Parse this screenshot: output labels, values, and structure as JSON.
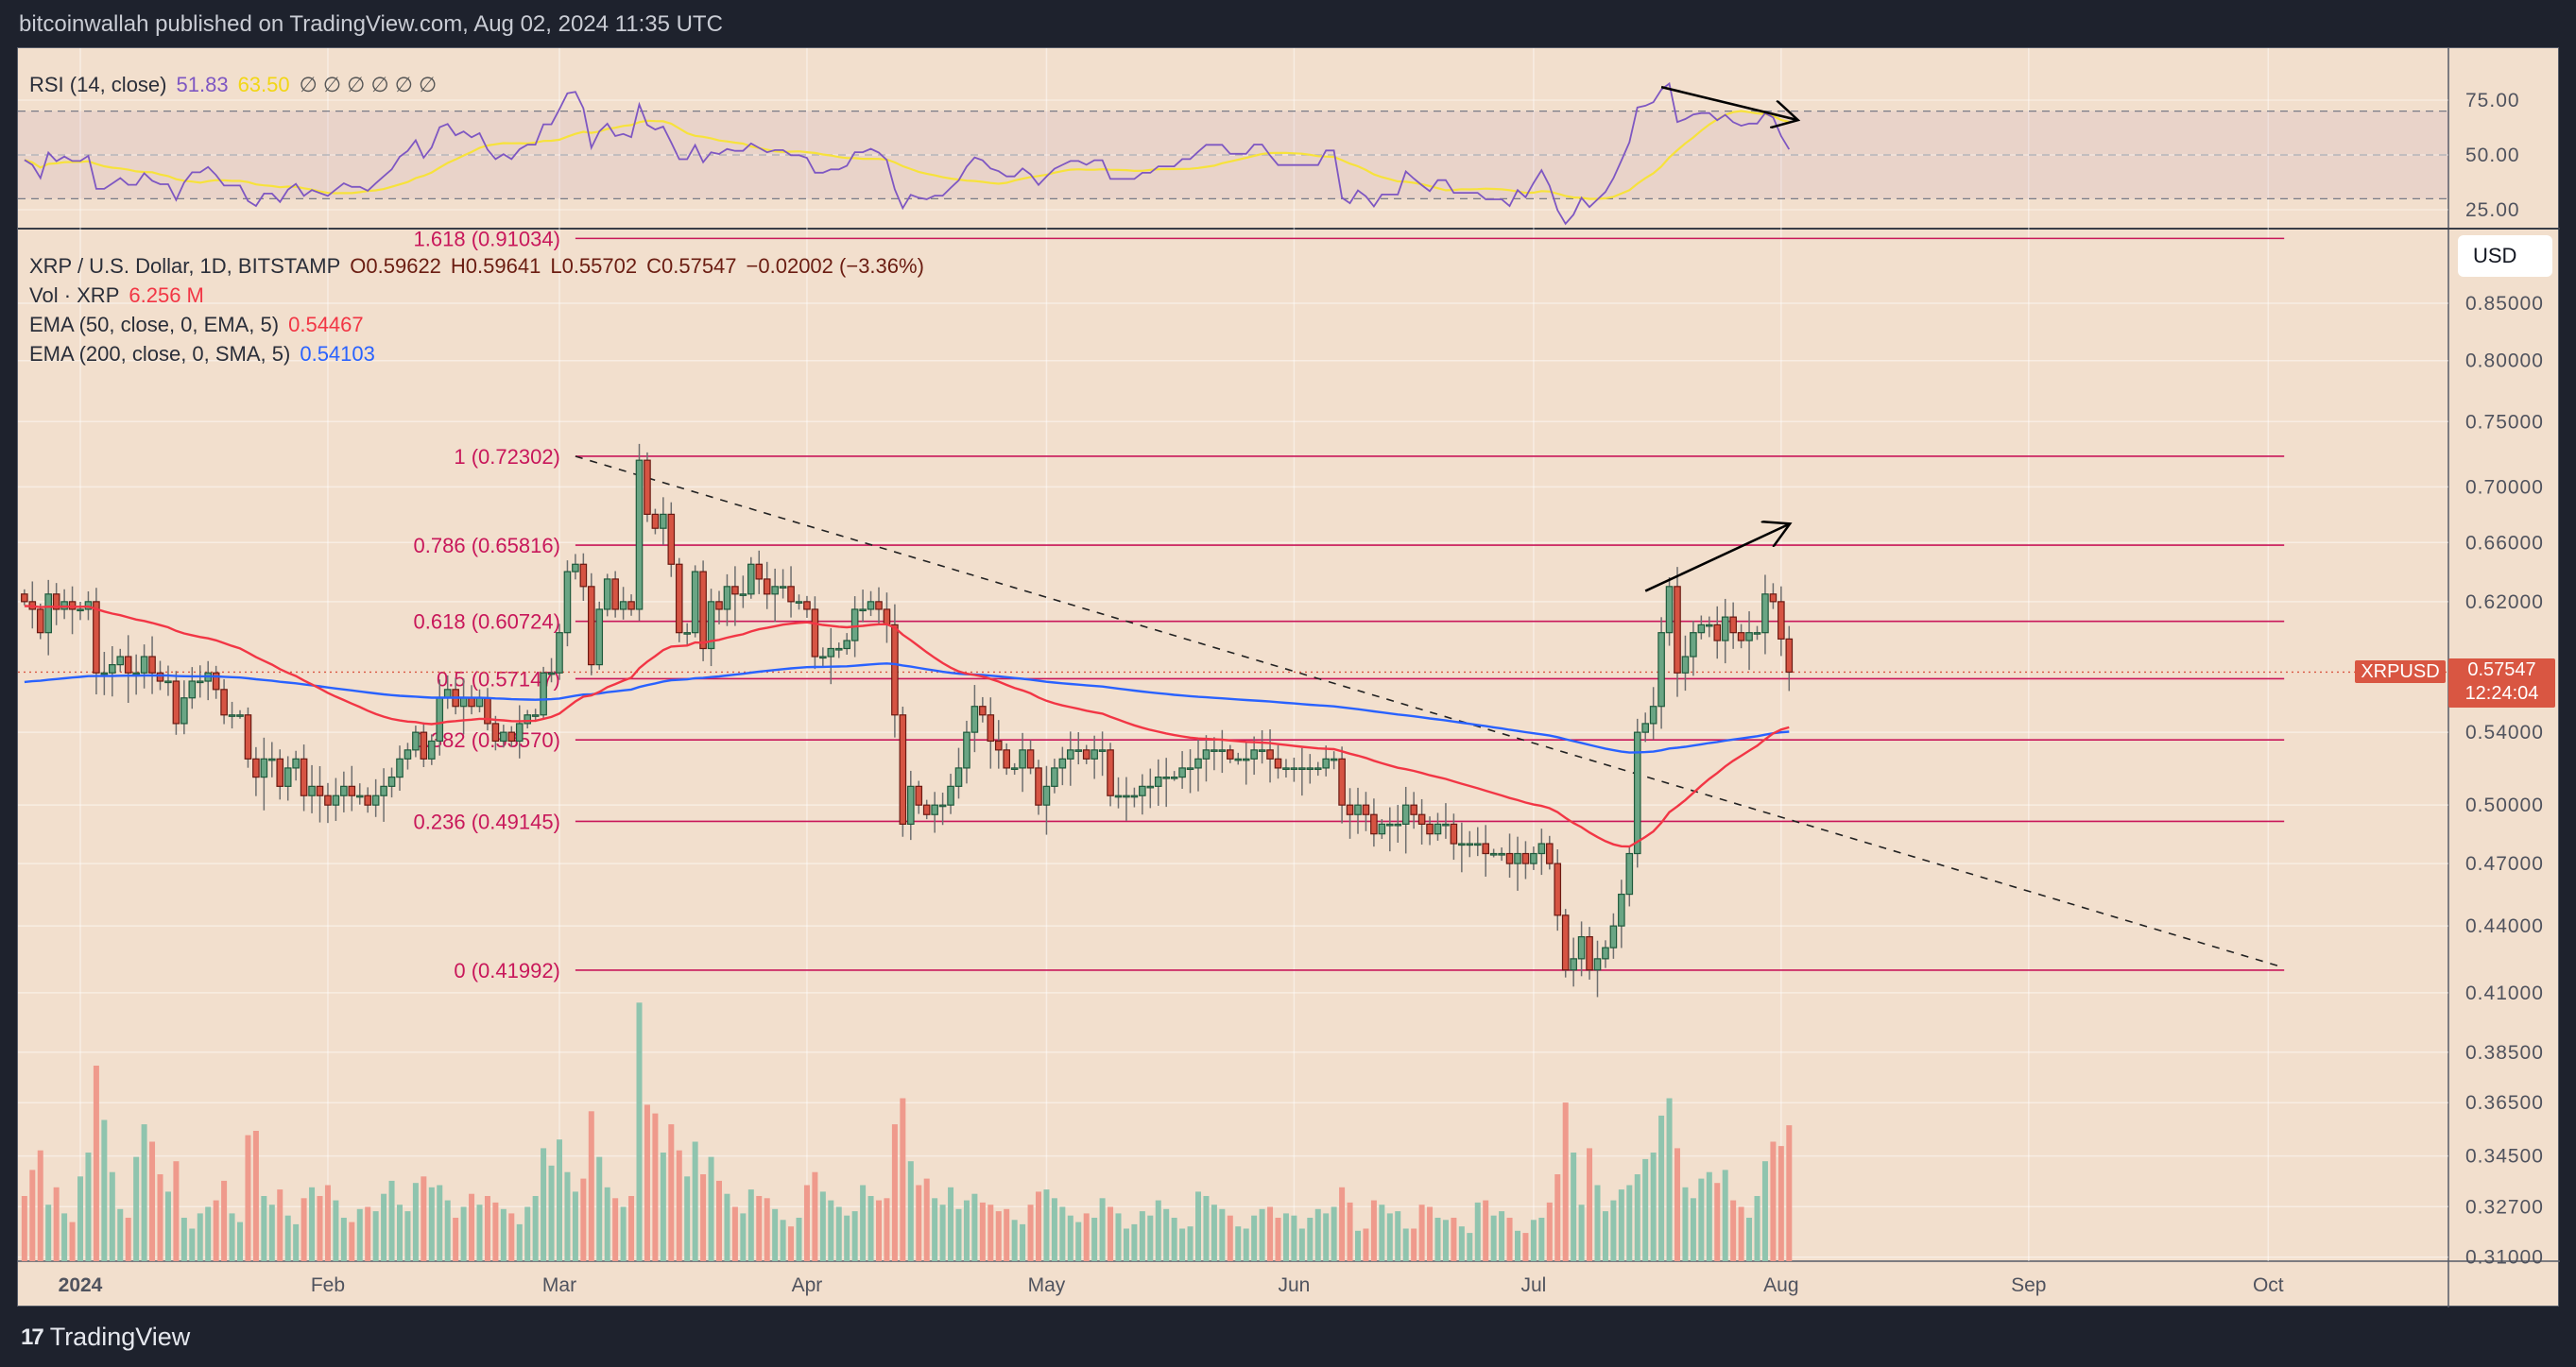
{
  "header": {
    "published": "bitcoinwallah published on TradingView.com, Aug 02, 2024 11:35 UTC"
  },
  "rsi_legend": {
    "label": "RSI (14, close)",
    "value": "51.83",
    "ma_value": "63.50",
    "extra": "∅ ∅ ∅ ∅ ∅ ∅"
  },
  "price_legend": {
    "symbol": "XRP / U.S. Dollar, 1D, BITSTAMP",
    "open": "O0.59622",
    "high": "H0.59641",
    "low": "L0.55702",
    "close": "C0.57547",
    "change": "−0.02002 (−3.36%)",
    "vol_label": "Vol · XRP",
    "vol_value": "6.256 M",
    "ema50_label": "EMA (50, close, 0, EMA, 5)",
    "ema50_value": "0.54467",
    "ema200_label": "EMA (200, close, 0, SMA, 5)",
    "ema200_value": "0.54103"
  },
  "axis": {
    "currency": "USD",
    "symbol_tag": "XRPUSD",
    "last_price": "0.57547",
    "countdown": "12:24:04"
  },
  "footer": {
    "brand": "TradingView",
    "logo": "17"
  },
  "colors": {
    "up": "#6aa584",
    "down": "#d65443",
    "ema50": "#f23645",
    "ema200": "#2962ff",
    "rsi": "#7e57c2",
    "rsi_ma": "#f7e23b",
    "fib": "#c8175a"
  },
  "chart_data": {
    "type": "candlestick",
    "title": "XRP / U.S. Dollar, 1D, BITSTAMP",
    "start_date": "2023-12-25",
    "first_open": 0.625,
    "closes": [
      0.62,
      0.615,
      0.6,
      0.625,
      0.615,
      0.62,
      0.615,
      0.615,
      0.62,
      0.575,
      0.575,
      0.58,
      0.585,
      0.575,
      0.575,
      0.585,
      0.575,
      0.57,
      0.57,
      0.545,
      0.56,
      0.57,
      0.57,
      0.575,
      0.565,
      0.55,
      0.55,
      0.55,
      0.525,
      0.515,
      0.525,
      0.525,
      0.51,
      0.52,
      0.525,
      0.505,
      0.51,
      0.505,
      0.5,
      0.505,
      0.51,
      0.505,
      0.505,
      0.5,
      0.505,
      0.51,
      0.515,
      0.525,
      0.53,
      0.54,
      0.525,
      0.535,
      0.56,
      0.565,
      0.555,
      0.56,
      0.555,
      0.56,
      0.545,
      0.535,
      0.54,
      0.535,
      0.545,
      0.55,
      0.55,
      0.575,
      0.575,
      0.6,
      0.64,
      0.645,
      0.63,
      0.58,
      0.615,
      0.635,
      0.615,
      0.62,
      0.615,
      0.72,
      0.68,
      0.67,
      0.68,
      0.645,
      0.6,
      0.6,
      0.64,
      0.59,
      0.62,
      0.615,
      0.63,
      0.625,
      0.625,
      0.645,
      0.635,
      0.625,
      0.63,
      0.63,
      0.62,
      0.62,
      0.615,
      0.585,
      0.585,
      0.59,
      0.59,
      0.595,
      0.615,
      0.615,
      0.62,
      0.615,
      0.605,
      0.55,
      0.49,
      0.51,
      0.5,
      0.495,
      0.5,
      0.5,
      0.51,
      0.52,
      0.54,
      0.555,
      0.55,
      0.535,
      0.53,
      0.52,
      0.52,
      0.53,
      0.52,
      0.5,
      0.51,
      0.52,
      0.525,
      0.53,
      0.53,
      0.525,
      0.53,
      0.53,
      0.505,
      0.505,
      0.505,
      0.505,
      0.51,
      0.51,
      0.515,
      0.515,
      0.515,
      0.52,
      0.52,
      0.525,
      0.53,
      0.53,
      0.53,
      0.525,
      0.525,
      0.525,
      0.53,
      0.53,
      0.525,
      0.52,
      0.52,
      0.52,
      0.52,
      0.52,
      0.52,
      0.525,
      0.525,
      0.5,
      0.495,
      0.5,
      0.495,
      0.485,
      0.49,
      0.49,
      0.49,
      0.5,
      0.495,
      0.49,
      0.485,
      0.49,
      0.49,
      0.48,
      0.48,
      0.48,
      0.48,
      0.475,
      0.475,
      0.475,
      0.47,
      0.475,
      0.47,
      0.475,
      0.48,
      0.47,
      0.445,
      0.42,
      0.425,
      0.435,
      0.42,
      0.425,
      0.43,
      0.44,
      0.455,
      0.475,
      0.54,
      0.545,
      0.555,
      0.6,
      0.63,
      0.575,
      0.585,
      0.6,
      0.605,
      0.605,
      0.595,
      0.61,
      0.6,
      0.595,
      0.6,
      0.6,
      0.625,
      0.62,
      0.596,
      0.57547
    ],
    "volumes_millions": [
      3.0,
      4.2,
      5.1,
      2.6,
      3.4,
      2.2,
      1.8,
      3.9,
      5.0,
      9.0,
      6.5,
      4.1,
      2.4,
      2.0,
      4.8,
      6.3,
      5.5,
      4.0,
      3.2,
      4.6,
      2.0,
      1.5,
      2.2,
      2.5,
      2.8,
      3.7,
      2.2,
      1.8,
      5.8,
      6.0,
      3.0,
      2.6,
      3.3,
      2.1,
      1.7,
      2.9,
      3.4,
      3.0,
      3.5,
      2.8,
      2.0,
      1.8,
      2.4,
      2.5,
      2.3,
      3.1,
      3.7,
      2.6,
      2.3,
      3.6,
      3.9,
      3.4,
      3.5,
      2.8,
      2.0,
      2.5,
      3.1,
      2.6,
      3.0,
      2.7,
      2.4,
      2.2,
      1.7,
      2.5,
      3.0,
      5.2,
      4.4,
      5.6,
      4.1,
      3.2,
      3.8,
      6.9,
      4.8,
      3.4,
      2.9,
      2.5,
      3.0,
      11.9,
      7.2,
      6.8,
      5.0,
      6.3,
      5.1,
      3.9,
      5.5,
      4.0,
      4.8,
      3.7,
      3.1,
      2.5,
      2.2,
      3.3,
      3.0,
      2.9,
      2.4,
      1.9,
      1.6,
      2.0,
      3.5,
      4.1,
      3.2,
      2.8,
      2.5,
      2.1,
      2.3,
      3.5,
      3.0,
      2.8,
      2.9,
      6.3,
      7.5,
      4.6,
      3.5,
      3.8,
      2.9,
      2.6,
      3.4,
      2.4,
      2.8,
      3.1,
      2.7,
      2.6,
      2.3,
      2.4,
      1.9,
      1.7,
      2.6,
      3.2,
      3.3,
      2.9,
      2.5,
      2.1,
      1.8,
      2.2,
      2.0,
      2.9,
      2.5,
      2.2,
      1.5,
      1.7,
      2.3,
      2.1,
      2.8,
      2.4,
      2.0,
      1.5,
      1.6,
      3.2,
      3.0,
      2.6,
      2.4,
      2.1,
      1.6,
      1.5,
      2.1,
      2.4,
      2.5,
      2.0,
      2.2,
      2.1,
      1.5,
      2.0,
      2.4,
      2.2,
      2.5,
      3.4,
      2.7,
      1.4,
      1.5,
      2.8,
      2.6,
      2.2,
      2.3,
      1.5,
      1.5,
      2.6,
      2.5,
      2.0,
      1.9,
      2.0,
      1.6,
      1.3,
      2.7,
      2.8,
      2.1,
      2.3,
      2.0,
      1.4,
      1.3,
      1.9,
      2.0,
      2.7,
      4.0,
      7.3,
      5.0,
      2.6,
      5.2,
      3.5,
      2.3,
      2.8,
      3.3,
      3.5,
      4.0,
      4.7,
      5.0,
      6.7,
      7.5,
      5.2,
      3.4,
      2.9,
      3.8,
      4.1,
      3.6,
      4.2,
      2.8,
      2.5,
      2.0,
      3.0,
      4.6,
      5.5,
      5.3,
      6.256
    ],
    "ema50_seed": 0.617,
    "ema200_seed": 0.569,
    "fib_levels": [
      {
        "ratio": "1.618",
        "price": 0.91034,
        "label": "1.618 (0.91034)"
      },
      {
        "ratio": "1",
        "price": 0.72302,
        "label": "1 (0.72302)"
      },
      {
        "ratio": "0.786",
        "price": 0.65816,
        "label": "0.786 (0.65816)"
      },
      {
        "ratio": "0.618",
        "price": 0.60724,
        "label": "0.618 (0.60724)"
      },
      {
        "ratio": "0.5",
        "price": 0.57147,
        "label": "0.5 (0.57147)"
      },
      {
        "ratio": "0.382",
        "price": 0.5357,
        "label": "0.382 (0.53570)"
      },
      {
        "ratio": "0.236",
        "price": 0.49145,
        "label": "0.236 (0.49145)"
      },
      {
        "ratio": "0",
        "price": 0.41992,
        "label": "0 (0.41992)"
      }
    ],
    "fib_range": {
      "start_date": "2024-03-03",
      "end_date": "2024-10-03"
    },
    "trendline": {
      "from": {
        "date": "2024-03-03",
        "price": 0.72302
      },
      "to": {
        "date": "2024-10-03",
        "price": 0.421
      }
    },
    "annotations": [
      {
        "pane": "price",
        "type": "arrow",
        "from": {
          "date": "2024-07-15",
          "price": 0.627
        },
        "to": {
          "date": "2024-08-02",
          "price": 0.673
        }
      },
      {
        "pane": "rsi",
        "type": "arrow",
        "from": {
          "date": "2024-07-17",
          "rsi": 81
        },
        "to": {
          "date": "2024-08-03",
          "rsi": 66
        }
      }
    ],
    "y_ticks": [
      "0.85000",
      "0.80000",
      "0.75000",
      "0.70000",
      "0.66000",
      "0.62000",
      "0.54000",
      "0.50000",
      "0.47000",
      "0.44000",
      "0.41000",
      "0.38500",
      "0.36500",
      "0.34500",
      "0.32700",
      "0.31000"
    ],
    "rsi_ticks": [
      "75.00",
      "50.00",
      "25.00"
    ],
    "rsi_bands": {
      "upper": 70,
      "middle": 50,
      "lower": 30
    },
    "x_ticks": [
      {
        "label": "2024",
        "date": "2024-01-01"
      },
      {
        "label": "Feb",
        "date": "2024-02-01"
      },
      {
        "label": "Mar",
        "date": "2024-03-01"
      },
      {
        "label": "Apr",
        "date": "2024-04-01"
      },
      {
        "label": "May",
        "date": "2024-05-01"
      },
      {
        "label": "Jun",
        "date": "2024-06-01"
      },
      {
        "label": "Jul",
        "date": "2024-07-01"
      },
      {
        "label": "Aug",
        "date": "2024-08-01"
      },
      {
        "label": "Sep",
        "date": "2024-09-01"
      },
      {
        "label": "Oct",
        "date": "2024-10-01"
      }
    ],
    "scale": "log"
  }
}
